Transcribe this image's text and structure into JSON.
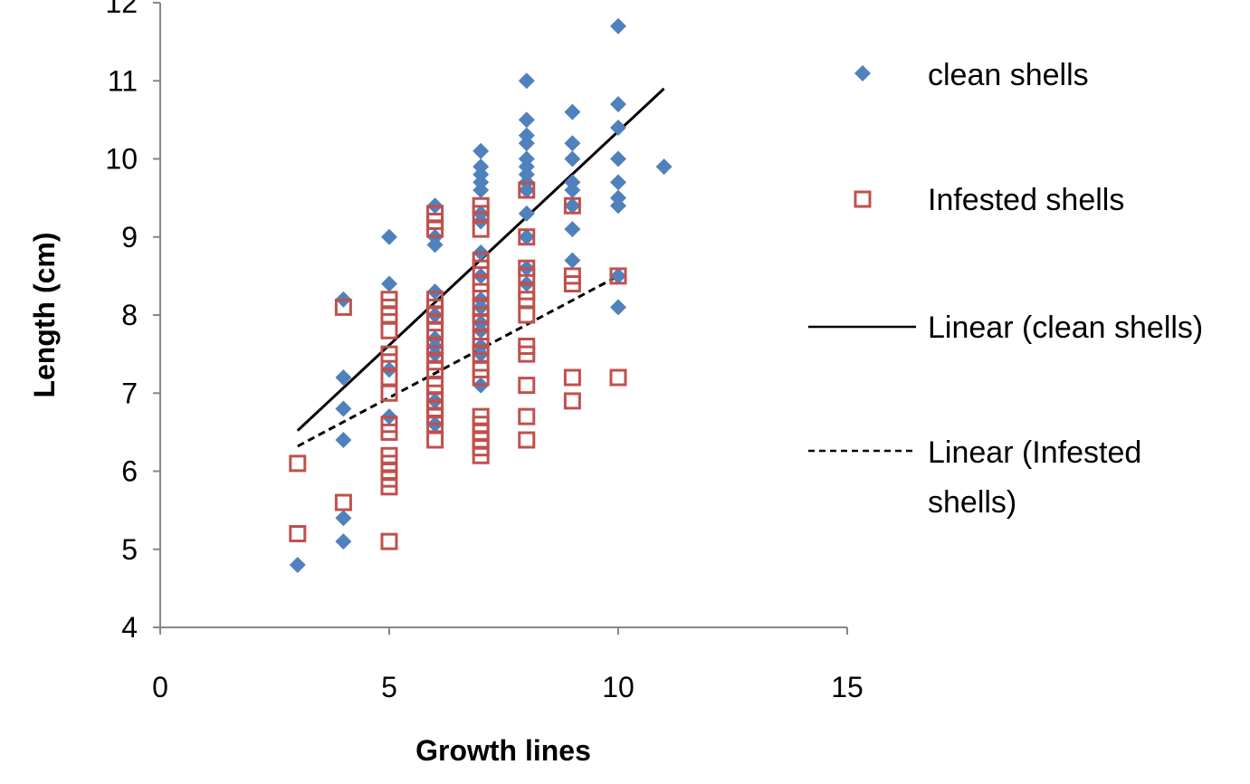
{
  "chart_data": {
    "type": "scatter",
    "title": "",
    "xlabel": "Growth lines",
    "ylabel": "Length (cm)",
    "xlim": [
      0,
      15
    ],
    "ylim": [
      4,
      12
    ],
    "xticks": [
      0,
      5,
      10,
      15
    ],
    "yticks": [
      4,
      5,
      6,
      7,
      8,
      9,
      10,
      11,
      12
    ],
    "grid": false,
    "legend_position": "right",
    "series": [
      {
        "name": "clean shells",
        "marker": "diamond",
        "color": "#4F81BD",
        "points": [
          [
            3,
            4.8
          ],
          [
            4,
            8.2
          ],
          [
            4,
            7.2
          ],
          [
            4,
            6.8
          ],
          [
            4,
            6.4
          ],
          [
            4,
            5.4
          ],
          [
            4,
            5.1
          ],
          [
            5,
            9.0
          ],
          [
            5,
            8.4
          ],
          [
            5,
            7.3
          ],
          [
            5,
            6.7
          ],
          [
            6,
            9.4
          ],
          [
            6,
            9.0
          ],
          [
            6,
            8.9
          ],
          [
            6,
            8.3
          ],
          [
            6,
            8.0
          ],
          [
            6,
            7.7
          ],
          [
            6,
            7.6
          ],
          [
            6,
            7.5
          ],
          [
            6,
            6.9
          ],
          [
            6,
            6.6
          ],
          [
            7,
            10.1
          ],
          [
            7,
            9.9
          ],
          [
            7,
            9.8
          ],
          [
            7,
            9.7
          ],
          [
            7,
            9.6
          ],
          [
            7,
            9.3
          ],
          [
            7,
            9.2
          ],
          [
            7,
            8.8
          ],
          [
            7,
            8.5
          ],
          [
            7,
            8.2
          ],
          [
            7,
            8.1
          ],
          [
            7,
            7.9
          ],
          [
            7,
            7.8
          ],
          [
            7,
            7.6
          ],
          [
            7,
            7.5
          ],
          [
            7,
            7.1
          ],
          [
            8,
            11.0
          ],
          [
            8,
            10.5
          ],
          [
            8,
            10.3
          ],
          [
            8,
            10.2
          ],
          [
            8,
            10.0
          ],
          [
            8,
            9.9
          ],
          [
            8,
            9.8
          ],
          [
            8,
            9.7
          ],
          [
            8,
            9.6
          ],
          [
            8,
            9.3
          ],
          [
            8,
            9.0
          ],
          [
            8,
            8.6
          ],
          [
            8,
            8.4
          ],
          [
            9,
            10.6
          ],
          [
            9,
            10.2
          ],
          [
            9,
            10.0
          ],
          [
            9,
            9.7
          ],
          [
            9,
            9.6
          ],
          [
            9,
            9.4
          ],
          [
            9,
            9.1
          ],
          [
            9,
            8.7
          ],
          [
            10,
            11.7
          ],
          [
            10,
            10.7
          ],
          [
            10,
            10.4
          ],
          [
            10,
            10.0
          ],
          [
            10,
            9.7
          ],
          [
            10,
            9.5
          ],
          [
            10,
            9.4
          ],
          [
            10,
            8.5
          ],
          [
            10,
            8.1
          ],
          [
            11,
            9.9
          ]
        ]
      },
      {
        "name": "Infested shells",
        "marker": "open-square",
        "color": "#C0504D",
        "points": [
          [
            3,
            6.1
          ],
          [
            3,
            5.2
          ],
          [
            4,
            8.1
          ],
          [
            4,
            5.6
          ],
          [
            5,
            8.2
          ],
          [
            5,
            8.1
          ],
          [
            5,
            8.0
          ],
          [
            5,
            7.8
          ],
          [
            5,
            7.5
          ],
          [
            5,
            7.4
          ],
          [
            5,
            7.2
          ],
          [
            5,
            7.0
          ],
          [
            5,
            6.6
          ],
          [
            5,
            6.5
          ],
          [
            5,
            6.2
          ],
          [
            5,
            6.1
          ],
          [
            5,
            6.0
          ],
          [
            5,
            5.9
          ],
          [
            5,
            5.8
          ],
          [
            5,
            5.1
          ],
          [
            6,
            9.3
          ],
          [
            6,
            9.2
          ],
          [
            6,
            9.1
          ],
          [
            6,
            8.2
          ],
          [
            6,
            8.1
          ],
          [
            6,
            8.0
          ],
          [
            6,
            7.9
          ],
          [
            6,
            7.8
          ],
          [
            6,
            7.6
          ],
          [
            6,
            7.5
          ],
          [
            6,
            7.4
          ],
          [
            6,
            7.3
          ],
          [
            6,
            7.1
          ],
          [
            6,
            7.0
          ],
          [
            6,
            6.9
          ],
          [
            6,
            6.8
          ],
          [
            6,
            6.7
          ],
          [
            6,
            6.6
          ],
          [
            6,
            6.4
          ],
          [
            7,
            9.4
          ],
          [
            7,
            9.3
          ],
          [
            7,
            9.1
          ],
          [
            7,
            8.7
          ],
          [
            7,
            8.6
          ],
          [
            7,
            8.4
          ],
          [
            7,
            8.3
          ],
          [
            7,
            8.1
          ],
          [
            7,
            8.0
          ],
          [
            7,
            7.9
          ],
          [
            7,
            7.7
          ],
          [
            7,
            7.6
          ],
          [
            7,
            7.5
          ],
          [
            7,
            7.3
          ],
          [
            7,
            7.2
          ],
          [
            7,
            6.7
          ],
          [
            7,
            6.6
          ],
          [
            7,
            6.5
          ],
          [
            7,
            6.4
          ],
          [
            7,
            6.3
          ],
          [
            7,
            6.2
          ],
          [
            8,
            9.6
          ],
          [
            8,
            9.0
          ],
          [
            8,
            8.6
          ],
          [
            8,
            8.5
          ],
          [
            8,
            8.3
          ],
          [
            8,
            8.2
          ],
          [
            8,
            8.0
          ],
          [
            8,
            7.6
          ],
          [
            8,
            7.5
          ],
          [
            8,
            7.1
          ],
          [
            8,
            6.7
          ],
          [
            8,
            6.4
          ],
          [
            9,
            9.4
          ],
          [
            9,
            8.5
          ],
          [
            9,
            8.4
          ],
          [
            9,
            7.2
          ],
          [
            9,
            6.9
          ],
          [
            10,
            8.5
          ],
          [
            10,
            7.2
          ]
        ]
      }
    ],
    "trendlines": [
      {
        "name": "Linear (clean shells)",
        "style": "solid",
        "color": "#000000",
        "from": [
          3,
          6.52
        ],
        "to": [
          11,
          10.9
        ]
      },
      {
        "name": "Linear (Infested shells)",
        "name_lines": [
          "Linear (Infested",
          "shells)"
        ],
        "style": "dashed",
        "color": "#000000",
        "from": [
          3,
          6.32
        ],
        "to": [
          10,
          8.5
        ]
      }
    ]
  }
}
